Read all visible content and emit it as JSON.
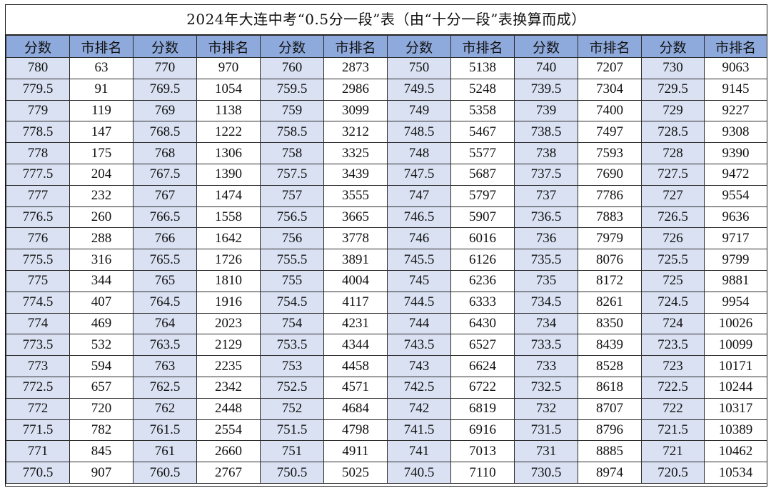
{
  "title": "2024年大连中考“0.5分一段”表（由“十分一段”表换算而成）",
  "headers": [
    "分数",
    "市排名",
    "分数",
    "市排名",
    "分数",
    "市排名",
    "分数",
    "市排名",
    "分数",
    "市排名",
    "分数",
    "市排名"
  ],
  "rows": [
    [
      "780",
      "63",
      "770",
      "970",
      "760",
      "2873",
      "750",
      "5138",
      "740",
      "7207",
      "730",
      "9063"
    ],
    [
      "779.5",
      "91",
      "769.5",
      "1054",
      "759.5",
      "2986",
      "749.5",
      "5248",
      "739.5",
      "7304",
      "729.5",
      "9145"
    ],
    [
      "779",
      "119",
      "769",
      "1138",
      "759",
      "3099",
      "749",
      "5358",
      "739",
      "7400",
      "729",
      "9227"
    ],
    [
      "778.5",
      "147",
      "768.5",
      "1222",
      "758.5",
      "3212",
      "748.5",
      "5467",
      "738.5",
      "7497",
      "728.5",
      "9308"
    ],
    [
      "778",
      "175",
      "768",
      "1306",
      "758",
      "3325",
      "748",
      "5577",
      "738",
      "7593",
      "728",
      "9390"
    ],
    [
      "777.5",
      "204",
      "767.5",
      "1390",
      "757.5",
      "3439",
      "747.5",
      "5687",
      "737.5",
      "7690",
      "727.5",
      "9472"
    ],
    [
      "777",
      "232",
      "767",
      "1474",
      "757",
      "3555",
      "747",
      "5797",
      "737",
      "7786",
      "727",
      "9554"
    ],
    [
      "776.5",
      "260",
      "766.5",
      "1558",
      "756.5",
      "3665",
      "746.5",
      "5907",
      "736.5",
      "7883",
      "726.5",
      "9636"
    ],
    [
      "776",
      "288",
      "766",
      "1642",
      "756",
      "3778",
      "746",
      "6016",
      "736",
      "7979",
      "726",
      "9717"
    ],
    [
      "775.5",
      "316",
      "765.5",
      "1726",
      "755.5",
      "3891",
      "745.5",
      "6126",
      "735.5",
      "8076",
      "725.5",
      "9799"
    ],
    [
      "775",
      "344",
      "765",
      "1810",
      "755",
      "4004",
      "745",
      "6236",
      "735",
      "8172",
      "725",
      "9881"
    ],
    [
      "774.5",
      "407",
      "764.5",
      "1916",
      "754.5",
      "4117",
      "744.5",
      "6333",
      "734.5",
      "8261",
      "724.5",
      "9954"
    ],
    [
      "774",
      "469",
      "764",
      "2023",
      "754",
      "4231",
      "744",
      "6430",
      "734",
      "8350",
      "724",
      "10026"
    ],
    [
      "773.5",
      "532",
      "763.5",
      "2129",
      "753.5",
      "4344",
      "743.5",
      "6527",
      "733.5",
      "8439",
      "723.5",
      "10099"
    ],
    [
      "773",
      "594",
      "763",
      "2235",
      "753",
      "4458",
      "743",
      "6624",
      "733",
      "8528",
      "723",
      "10171"
    ],
    [
      "772.5",
      "657",
      "762.5",
      "2342",
      "752.5",
      "4571",
      "742.5",
      "6722",
      "732.5",
      "8618",
      "722.5",
      "10244"
    ],
    [
      "772",
      "720",
      "762",
      "2448",
      "752",
      "4684",
      "742",
      "6819",
      "732",
      "8707",
      "722",
      "10317"
    ],
    [
      "771.5",
      "782",
      "761.5",
      "2554",
      "751.5",
      "4798",
      "741.5",
      "6916",
      "731.5",
      "8796",
      "721.5",
      "10389"
    ],
    [
      "771",
      "845",
      "761",
      "2660",
      "751",
      "4911",
      "741",
      "7013",
      "731",
      "8885",
      "721",
      "10462"
    ],
    [
      "770.5",
      "907",
      "760.5",
      "2767",
      "750.5",
      "5025",
      "740.5",
      "7110",
      "730.5",
      "8974",
      "720.5",
      "10534"
    ]
  ],
  "colors": {
    "header_bg": "#8ea9db",
    "score_bg": "#d9e1f2",
    "rank_bg": "#ffffff"
  }
}
